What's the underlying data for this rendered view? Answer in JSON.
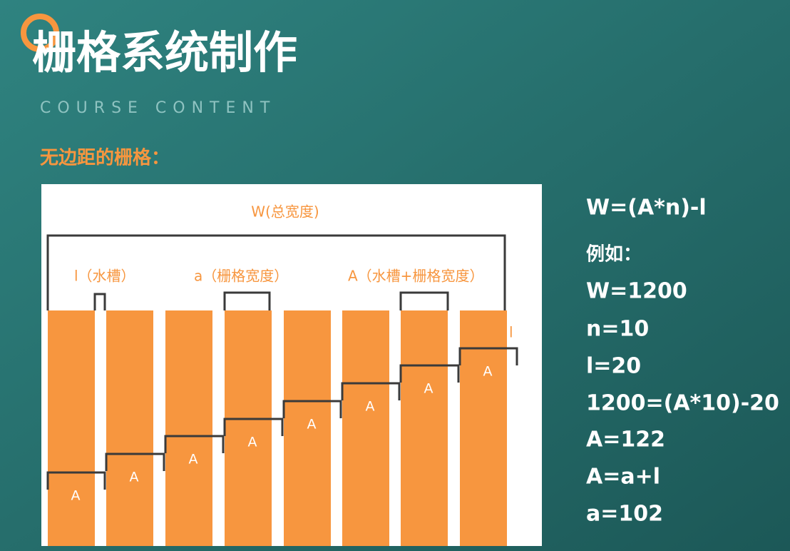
{
  "header": {
    "title": "栅格系统制作",
    "subtitle": "COURSE CONTENT"
  },
  "section_title": "无边距的栅格：",
  "diagram": {
    "total_label": "W(总宽度)",
    "gutter_label": "l（水槽）",
    "width_label": "a（栅格宽度）",
    "unit_label": "A（水槽+栅格宽度）",
    "end_gutter_label": "l",
    "step_labels": [
      "A",
      "A",
      "A",
      "A",
      "A",
      "A",
      "A",
      "A"
    ]
  },
  "formulas": [
    "W=(A*n)-l",
    "例如：",
    "W=1200",
    "n=10",
    "l=20",
    "1200=(A*10)-20",
    "A=122",
    "A=a+l",
    "a=102"
  ]
}
